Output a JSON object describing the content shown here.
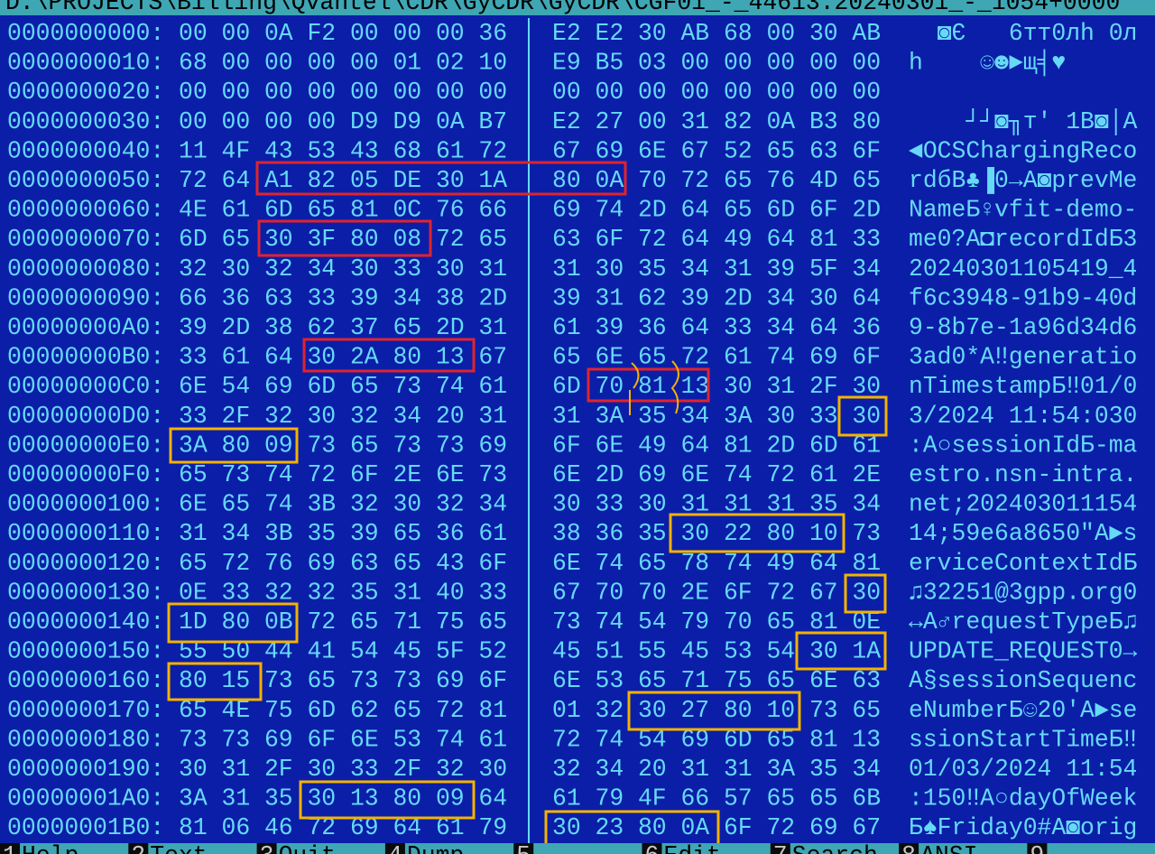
{
  "title": "D:\\PROJECTS\\Billing\\Qvantel\\CDR\\GyCDR\\GyCDR\\CGF01_-_44613.20240301_-_1054+0000",
  "rows": [
    {
      "offset": "0000000000:",
      "hex": [
        "00",
        "00",
        "0A",
        "F2",
        "00",
        "00",
        "00",
        "36",
        "E2",
        "E2",
        "30",
        "AB",
        "68",
        "00",
        "30",
        "AB"
      ],
      "text": "  ◙Є   6тт0лh 0л"
    },
    {
      "offset": "0000000010:",
      "hex": [
        "68",
        "00",
        "00",
        "00",
        "00",
        "01",
        "02",
        "10",
        "E9",
        "B5",
        "03",
        "00",
        "00",
        "00",
        "00",
        "00"
      ],
      "text": "h    ☺☻►щ╡♥"
    },
    {
      "offset": "0000000020:",
      "hex": [
        "00",
        "00",
        "00",
        "00",
        "00",
        "00",
        "00",
        "00",
        "00",
        "00",
        "00",
        "00",
        "00",
        "00",
        "00",
        "00"
      ]
    },
    {
      "offset": "0000000030:",
      "hex": [
        "00",
        "00",
        "00",
        "00",
        "D9",
        "D9",
        "0A",
        "B7",
        "E2",
        "27",
        "00",
        "31",
        "82",
        "0A",
        "B3",
        "80"
      ],
      "text": "    ┘┘◙╖т' 1В◙│А"
    },
    {
      "offset": "0000000040:",
      "hex": [
        "11",
        "4F",
        "43",
        "53",
        "43",
        "68",
        "61",
        "72",
        "67",
        "69",
        "6E",
        "67",
        "52",
        "65",
        "63",
        "6F"
      ],
      "text": "◄OCSChargingReco"
    },
    {
      "offset": "0000000050:",
      "hex": [
        "72",
        "64",
        "A1",
        "82",
        "05",
        "DE",
        "30",
        "1A",
        "80",
        "0A",
        "70",
        "72",
        "65",
        "76",
        "4D",
        "65"
      ],
      "text": "rdбВ♣▐0→А◙prevMe"
    },
    {
      "offset": "0000000060:",
      "hex": [
        "4E",
        "61",
        "6D",
        "65",
        "81",
        "0C",
        "76",
        "66",
        "69",
        "74",
        "2D",
        "64",
        "65",
        "6D",
        "6F",
        "2D"
      ],
      "text": "NameБ♀vfit-demo-"
    },
    {
      "offset": "0000000070:",
      "hex": [
        "6D",
        "65",
        "30",
        "3F",
        "80",
        "08",
        "72",
        "65",
        "63",
        "6F",
        "72",
        "64",
        "49",
        "64",
        "81",
        "33"
      ],
      "text": "me0?А◘recordIdБ3"
    },
    {
      "offset": "0000000080:",
      "hex": [
        "32",
        "30",
        "32",
        "34",
        "30",
        "33",
        "30",
        "31",
        "31",
        "30",
        "35",
        "34",
        "31",
        "39",
        "5F",
        "34"
      ],
      "text": "20240301105419_4"
    },
    {
      "offset": "0000000090:",
      "hex": [
        "66",
        "36",
        "63",
        "33",
        "39",
        "34",
        "38",
        "2D",
        "39",
        "31",
        "62",
        "39",
        "2D",
        "34",
        "30",
        "64"
      ],
      "text": "f6c3948-91b9-40d"
    },
    {
      "offset": "00000000A0:",
      "hex": [
        "39",
        "2D",
        "38",
        "62",
        "37",
        "65",
        "2D",
        "31",
        "61",
        "39",
        "36",
        "64",
        "33",
        "34",
        "64",
        "36"
      ],
      "text": "9-8b7e-1a96d34d6"
    },
    {
      "offset": "00000000B0:",
      "hex": [
        "33",
        "61",
        "64",
        "30",
        "2A",
        "80",
        "13",
        "67",
        "65",
        "6E",
        "65",
        "72",
        "61",
        "74",
        "69",
        "6F"
      ],
      "text": "3ad0*А‼generatio"
    },
    {
      "offset": "00000000C0:",
      "hex": [
        "6E",
        "54",
        "69",
        "6D",
        "65",
        "73",
        "74",
        "61",
        "6D",
        "70",
        "81",
        "13",
        "30",
        "31",
        "2F",
        "30"
      ],
      "text": "nTimestampБ‼01/0"
    },
    {
      "offset": "00000000D0:",
      "hex": [
        "33",
        "2F",
        "32",
        "30",
        "32",
        "34",
        "20",
        "31",
        "31",
        "3A",
        "35",
        "34",
        "3A",
        "30",
        "33",
        "30"
      ],
      "text": "3/2024 11:54:030"
    },
    {
      "offset": "00000000E0:",
      "hex": [
        "3A",
        "80",
        "09",
        "73",
        "65",
        "73",
        "73",
        "69",
        "6F",
        "6E",
        "49",
        "64",
        "81",
        "2D",
        "6D",
        "61"
      ],
      "text": ":А○sessionIdБ-ma"
    },
    {
      "offset": "00000000F0:",
      "hex": [
        "65",
        "73",
        "74",
        "72",
        "6F",
        "2E",
        "6E",
        "73",
        "6E",
        "2D",
        "69",
        "6E",
        "74",
        "72",
        "61",
        "2E"
      ],
      "text": "estro.nsn-intra."
    },
    {
      "offset": "0000000100:",
      "hex": [
        "6E",
        "65",
        "74",
        "3B",
        "32",
        "30",
        "32",
        "34",
        "30",
        "33",
        "30",
        "31",
        "31",
        "31",
        "35",
        "34"
      ],
      "text": "net;202403011154"
    },
    {
      "offset": "0000000110:",
      "hex": [
        "31",
        "34",
        "3B",
        "35",
        "39",
        "65",
        "36",
        "61",
        "38",
        "36",
        "35",
        "30",
        "22",
        "80",
        "10",
        "73"
      ],
      "text": "14;59e6a8650\"А►s"
    },
    {
      "offset": "0000000120:",
      "hex": [
        "65",
        "72",
        "76",
        "69",
        "63",
        "65",
        "43",
        "6F",
        "6E",
        "74",
        "65",
        "78",
        "74",
        "49",
        "64",
        "81"
      ],
      "text": "erviceContextIdБ"
    },
    {
      "offset": "0000000130:",
      "hex": [
        "0E",
        "33",
        "32",
        "32",
        "35",
        "31",
        "40",
        "33",
        "67",
        "70",
        "70",
        "2E",
        "6F",
        "72",
        "67",
        "30"
      ],
      "text": "♫32251@3gpp.org0"
    },
    {
      "offset": "0000000140:",
      "hex": [
        "1D",
        "80",
        "0B",
        "72",
        "65",
        "71",
        "75",
        "65",
        "73",
        "74",
        "54",
        "79",
        "70",
        "65",
        "81",
        "0E"
      ],
      "text": "↔А♂requestTypeБ♫"
    },
    {
      "offset": "0000000150:",
      "hex": [
        "55",
        "50",
        "44",
        "41",
        "54",
        "45",
        "5F",
        "52",
        "45",
        "51",
        "55",
        "45",
        "53",
        "54",
        "30",
        "1A"
      ],
      "text": "UPDATE_REQUEST0→"
    },
    {
      "offset": "0000000160:",
      "hex": [
        "80",
        "15",
        "73",
        "65",
        "73",
        "73",
        "69",
        "6F",
        "6E",
        "53",
        "65",
        "71",
        "75",
        "65",
        "6E",
        "63"
      ],
      "text": "А§sessionSequenc"
    },
    {
      "offset": "0000000170:",
      "hex": [
        "65",
        "4E",
        "75",
        "6D",
        "62",
        "65",
        "72",
        "81",
        "01",
        "32",
        "30",
        "27",
        "80",
        "10",
        "73",
        "65"
      ],
      "text": "eNumberБ☺20'А►se"
    },
    {
      "offset": "0000000180:",
      "hex": [
        "73",
        "73",
        "69",
        "6F",
        "6E",
        "53",
        "74",
        "61",
        "72",
        "74",
        "54",
        "69",
        "6D",
        "65",
        "81",
        "13"
      ],
      "text": "ssionStartTimeБ‼"
    },
    {
      "offset": "0000000190:",
      "hex": [
        "30",
        "31",
        "2F",
        "30",
        "33",
        "2F",
        "32",
        "30",
        "32",
        "34",
        "20",
        "31",
        "31",
        "3A",
        "35",
        "34"
      ],
      "text": "01/03/2024 11:54"
    },
    {
      "offset": "00000001A0:",
      "hex": [
        "3A",
        "31",
        "35",
        "30",
        "13",
        "80",
        "09",
        "64",
        "61",
        "79",
        "4F",
        "66",
        "57",
        "65",
        "65",
        "6B"
      ],
      "text": ":150‼А○dayOfWeek"
    },
    {
      "offset": "00000001B0:",
      "hex": [
        "81",
        "06",
        "46",
        "72",
        "69",
        "64",
        "61",
        "79",
        "30",
        "23",
        "80",
        "0A",
        "6F",
        "72",
        "69",
        "67"
      ],
      "text": "Б♠Friday0#А◙orig"
    }
  ],
  "keybar": [
    {
      "key": "1",
      "label": "Help"
    },
    {
      "key": "2",
      "label": "Text"
    },
    {
      "key": "3",
      "label": "Quit"
    },
    {
      "key": "4",
      "label": "Dump"
    },
    {
      "key": "5"
    },
    {
      "key": "6",
      "label": "Edit"
    },
    {
      "key": "7",
      "label": "Search"
    },
    {
      "key": "8",
      "label": "ANSI"
    },
    {
      "key": "9"
    }
  ]
}
